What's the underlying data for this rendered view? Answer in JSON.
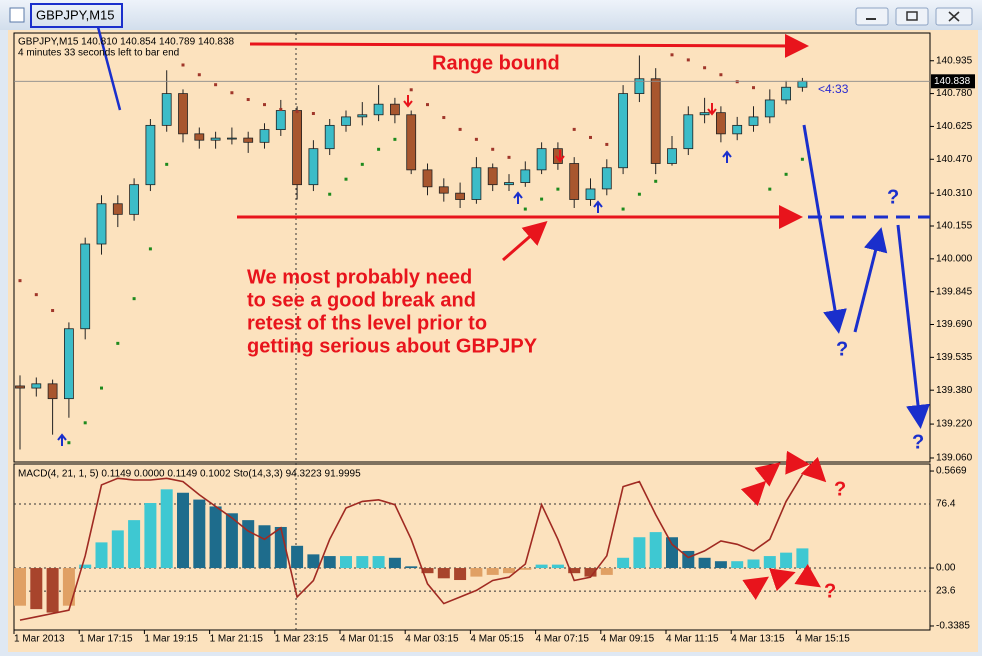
{
  "window": {
    "title": "GBPJPY,M15"
  },
  "annotations": {
    "range_label": "Range bound",
    "note": [
      "We most probably need",
      "to see a good break and",
      "retest of ths level prior to",
      "getting serious about GBPJPY"
    ],
    "question_marks": [
      "?",
      "?",
      "?",
      "?",
      "?"
    ]
  },
  "chart_data": [
    {
      "type": "candlestick",
      "header": "GBPJPY,M15  140.810 140.854 140.789 140.838",
      "timer_text": "4 minutes 33 seconds left to bar end",
      "countdown_label": "<4:33",
      "categories": [
        "1 Mar 2013",
        null,
        null,
        null,
        "1 Mar 17:15",
        null,
        null,
        null,
        "1 Mar 19:15",
        null,
        null,
        null,
        "1 Mar 21:15",
        null,
        null,
        null,
        "1 Mar 23:15",
        null,
        null,
        null,
        "4 Mar 01:15",
        null,
        null,
        null,
        "4 Mar 03:15",
        null,
        null,
        null,
        "4 Mar 05:15",
        null,
        null,
        null,
        "4 Mar 07:15",
        null,
        null,
        null,
        "4 Mar 09:15",
        null,
        null,
        null,
        "4 Mar 11:15",
        null,
        null,
        null,
        "4 Mar 13:15",
        null,
        null,
        null,
        "4 Mar 15:15"
      ],
      "open": [
        139.4,
        139.39,
        139.41,
        139.34,
        139.67,
        140.07,
        140.26,
        140.21,
        140.35,
        140.63,
        140.78,
        140.59,
        140.56,
        140.57,
        140.57,
        140.55,
        140.61,
        140.7,
        140.35,
        140.52,
        140.63,
        140.67,
        140.68,
        140.73,
        140.68,
        140.42,
        140.34,
        140.31,
        140.28,
        140.43,
        140.35,
        140.36,
        140.42,
        140.52,
        140.45,
        140.28,
        140.33,
        140.43,
        140.78,
        140.85,
        140.45,
        140.52,
        140.68,
        140.69,
        140.59,
        140.63,
        140.67,
        140.75,
        140.81
      ],
      "high": [
        139.45,
        139.44,
        139.43,
        139.7,
        140.1,
        140.3,
        140.3,
        140.38,
        140.66,
        140.89,
        140.8,
        140.62,
        140.6,
        140.62,
        140.6,
        140.64,
        140.75,
        140.72,
        140.56,
        140.66,
        140.7,
        140.74,
        140.82,
        140.76,
        140.7,
        140.45,
        140.38,
        140.36,
        140.48,
        140.45,
        140.4,
        140.46,
        140.55,
        140.55,
        140.48,
        140.38,
        140.47,
        140.82,
        140.96,
        140.9,
        140.58,
        140.72,
        140.76,
        140.72,
        140.67,
        140.72,
        140.8,
        140.84,
        140.854
      ],
      "low": [
        139.1,
        139.35,
        139.17,
        139.25,
        139.62,
        140.02,
        140.15,
        140.18,
        140.32,
        140.6,
        140.55,
        140.52,
        140.52,
        140.54,
        140.5,
        140.52,
        140.58,
        140.28,
        140.32,
        140.49,
        140.6,
        140.63,
        140.65,
        140.64,
        140.4,
        140.3,
        140.27,
        140.24,
        140.26,
        140.32,
        140.32,
        140.34,
        140.4,
        140.42,
        140.24,
        140.25,
        140.3,
        140.4,
        140.74,
        140.4,
        140.44,
        140.49,
        140.64,
        140.55,
        140.56,
        140.6,
        140.64,
        140.73,
        140.789
      ],
      "close": [
        139.39,
        139.41,
        139.34,
        139.67,
        140.07,
        140.26,
        140.21,
        140.35,
        140.63,
        140.78,
        140.59,
        140.56,
        140.57,
        140.57,
        140.55,
        140.61,
        140.7,
        140.35,
        140.52,
        140.63,
        140.67,
        140.68,
        140.73,
        140.68,
        140.42,
        140.34,
        140.31,
        140.28,
        140.43,
        140.35,
        140.36,
        140.42,
        140.52,
        140.45,
        140.28,
        140.33,
        140.43,
        140.78,
        140.85,
        140.45,
        140.52,
        140.68,
        140.69,
        140.59,
        140.63,
        140.67,
        140.75,
        140.81,
        140.838
      ],
      "up_color": "#3cbcc8",
      "down_color": "#a8562e",
      "sar": {
        "values": [
          139.897,
          139.831,
          139.756,
          139.132,
          139.226,
          139.39,
          139.601,
          139.812,
          140.047,
          140.446,
          140.915,
          140.869,
          140.822,
          140.784,
          140.752,
          140.728,
          140.705,
          140.695,
          140.686,
          140.305,
          140.376,
          140.446,
          140.517,
          140.564,
          140.798,
          140.728,
          140.667,
          140.611,
          140.564,
          140.517,
          140.479,
          140.235,
          140.282,
          140.329,
          140.611,
          140.573,
          140.54,
          140.235,
          140.305,
          140.366,
          140.963,
          140.939,
          140.902,
          140.869,
          140.836,
          140.808,
          140.329,
          140.399,
          140.47
        ],
        "up_color": "#1d8a1d",
        "down_color": "#a0362a"
      },
      "ylim": [
        139.041,
        141.066
      ],
      "yticks": [
        140.935,
        {
          "value": 140.78,
          "label": "140.780"
        },
        140.625,
        {
          "value": 140.47,
          "label": "140.470"
        },
        {
          "value": 140.31,
          "label": "140.310"
        },
        140.155,
        {
          "value": 140,
          "label": "140.000"
        },
        139.845,
        {
          "value": 139.69,
          "label": "139.690"
        },
        139.535,
        {
          "value": 139.38,
          "label": "139.380"
        },
        {
          "value": 139.22,
          "label": "139.220"
        },
        {
          "value": 139.06,
          "label": "139.060"
        }
      ]
    },
    {
      "type": "macd_stochastic",
      "header": "MACD(4, 21, 1, 5) 0.1149 0.0000 0.1149 0.1002  Sto(14,3,3) 94.3223 91.9995",
      "macd": {
        "values": [
          -0.22,
          -0.24,
          -0.26,
          -0.22,
          0.02,
          0.15,
          0.22,
          0.28,
          0.38,
          0.46,
          0.44,
          0.4,
          0.36,
          0.32,
          0.28,
          0.25,
          0.24,
          0.13,
          0.08,
          0.07,
          0.07,
          0.07,
          0.07,
          0.06,
          0.01,
          -0.03,
          -0.06,
          -0.07,
          -0.05,
          -0.04,
          -0.03,
          -0.01,
          0.02,
          0.02,
          -0.03,
          -0.05,
          -0.04,
          0.06,
          0.18,
          0.21,
          0.18,
          0.1,
          0.06,
          0.04,
          0.04,
          0.05,
          0.07,
          0.09,
          0.1149
        ],
        "rising_color": "#3ec8d2",
        "falling_color": "#1e6c8c",
        "negative_rising_color": "#e0a064",
        "negative_falling_color": "#a8442c"
      },
      "stochastic": {
        "values": [
          6,
          8,
          10,
          12,
          45,
          88,
          92,
          91,
          91,
          92,
          90,
          82,
          75,
          68,
          60,
          55,
          62,
          20,
          30,
          55,
          74,
          78,
          79,
          76,
          55,
          28,
          16,
          20,
          24,
          30,
          32,
          40,
          76,
          55,
          30,
          32,
          45,
          87,
          90,
          70,
          52,
          44,
          48,
          54,
          52,
          48,
          55,
          78,
          94.3223
        ],
        "color": "#a02a22"
      },
      "ylim": [
        -0.362,
        0.608
      ],
      "yticks": [
        0.5669,
        {
          "value": 0,
          "label": "0.00"
        },
        -0.3385
      ],
      "y2lim": [
        0,
        100.7
      ],
      "y2ticks": [
        76.4,
        23.6
      ]
    }
  ]
}
